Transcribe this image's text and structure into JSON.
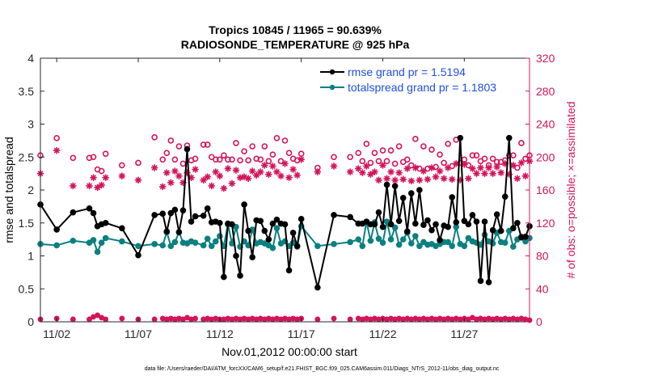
{
  "colors": {
    "rmse": "#000000",
    "spread": "#0b8080",
    "obs": "#d4145a",
    "legend_text": "#1f4fe0",
    "right_axis": "#d4145a",
    "axis": "#262626"
  },
  "chart_data": {
    "type": "line",
    "title": "Tropics 10845 / 11965 = 90.639%",
    "subtitle": "RADIOSONDE_TEMPERATURE @ 925 hPa",
    "xlabel": "Nov.01,2012 00:00:00 start",
    "ylabel": "rmse and totalspread",
    "y2label": "# of obs: o=possible; ×=assimilated",
    "footer": "data file: /Users/raeder/DAI/ATM_forcXX/CAM6_setup/f.e21.FHIST_BGC.f09_025.CAM6assim.011/Diags_NTrS_2012-11/obs_diag_output.nc",
    "xlim": [
      0.5,
      30.5
    ],
    "ylim": [
      0,
      4
    ],
    "y2lim": [
      0,
      320
    ],
    "xticks": [
      1.5,
      6.5,
      11.5,
      16.5,
      21.5,
      26.5
    ],
    "xtick_labels": [
      "11/02",
      "11/07",
      "11/12",
      "11/17",
      "11/22",
      "11/27"
    ],
    "yticks": [
      0,
      0.5,
      1,
      1.5,
      2,
      2.5,
      3,
      3.5,
      4
    ],
    "ytick_labels": [
      "0",
      "0.5",
      "1",
      "1.5",
      "2",
      "2.5",
      "3",
      "3.5",
      "4"
    ],
    "y2ticks": [
      0,
      40,
      80,
      120,
      160,
      200,
      240,
      280,
      320
    ],
    "y2tick_labels": [
      "0",
      "40",
      "80",
      "120",
      "160",
      "200",
      "240",
      "280",
      "320"
    ],
    "legend": {
      "position": "top-right",
      "entries": [
        "rmse grand pr = 1.5194",
        "totalspread grand pr = 1.1803"
      ]
    },
    "series": [
      {
        "name": "rmse grand pr = 1.5194",
        "style": "black-line-dots",
        "x": [
          0.5,
          1.5,
          2.5,
          3.5,
          3.75,
          4.0,
          4.25,
          4.5,
          5.5,
          6.5,
          7.5,
          8.0,
          8.25,
          8.5,
          8.75,
          9.0,
          9.25,
          9.5,
          9.75,
          10.0,
          10.5,
          10.75,
          11.0,
          11.25,
          11.5,
          11.75,
          12.0,
          12.25,
          12.5,
          12.75,
          13.0,
          13.25,
          13.5,
          13.75,
          14.0,
          14.25,
          14.5,
          14.75,
          15.0,
          15.25,
          15.5,
          15.75,
          16.0,
          16.25,
          16.5,
          17.5,
          18.5,
          19.5,
          20.0,
          20.25,
          20.5,
          20.75,
          21.0,
          21.25,
          21.5,
          21.75,
          22.0,
          22.25,
          22.5,
          22.75,
          23.0,
          23.25,
          23.5,
          23.75,
          24.0,
          24.25,
          24.5,
          24.75,
          25.0,
          25.25,
          25.5,
          25.75,
          26.0,
          26.25,
          26.5,
          26.75,
          27.0,
          27.25,
          27.5,
          27.75,
          28.0,
          28.25,
          28.5,
          28.75,
          29.0,
          29.25,
          29.5,
          29.75,
          30.0,
          30.25,
          30.5
        ],
        "y": [
          1.78,
          1.4,
          1.66,
          1.72,
          1.65,
          1.45,
          1.48,
          1.5,
          1.42,
          1.01,
          1.62,
          1.64,
          1.37,
          1.65,
          1.7,
          1.36,
          1.69,
          2.62,
          1.52,
          1.6,
          1.61,
          1.72,
          1.51,
          1.52,
          1.5,
          0.68,
          1.49,
          1.48,
          1.0,
          0.7,
          1.78,
          1.38,
          0.98,
          1.54,
          1.53,
          1.38,
          1.25,
          1.49,
          1.55,
          1.49,
          1.48,
          0.78,
          1.35,
          1.15,
          1.56,
          0.52,
          1.62,
          1.59,
          1.49,
          1.49,
          1.52,
          1.48,
          1.48,
          1.66,
          1.44,
          2.08,
          1.48,
          2.06,
          1.53,
          1.88,
          1.37,
          1.95,
          1.49,
          2.0,
          1.47,
          1.54,
          1.39,
          1.48,
          1.24,
          1.46,
          1.44,
          1.89,
          1.51,
          2.79,
          1.53,
          1.48,
          1.62,
          1.52,
          0.62,
          1.52,
          0.6,
          1.39,
          1.63,
          1.38,
          1.9,
          2.79,
          1.42,
          1.5,
          1.28,
          1.29,
          1.45
        ],
        "yaxis": "left"
      },
      {
        "name": "totalspread grand pr = 1.1803",
        "style": "teal-line-dots",
        "x": [
          0.5,
          1.5,
          2.5,
          3.5,
          3.75,
          4.0,
          4.25,
          4.5,
          5.5,
          6.5,
          7.5,
          8.0,
          8.25,
          8.5,
          8.75,
          9.0,
          9.25,
          9.5,
          9.75,
          10.0,
          10.5,
          10.75,
          11.0,
          11.25,
          11.5,
          11.75,
          12.0,
          12.25,
          12.5,
          12.75,
          13.0,
          13.25,
          13.5,
          13.75,
          14.0,
          14.25,
          14.5,
          14.75,
          15.0,
          15.25,
          15.5,
          15.75,
          16.0,
          16.25,
          16.5,
          17.5,
          18.5,
          19.5,
          20.0,
          20.25,
          20.5,
          20.75,
          21.0,
          21.25,
          21.5,
          21.75,
          22.0,
          22.25,
          22.5,
          22.75,
          23.0,
          23.25,
          23.5,
          23.75,
          24.0,
          24.25,
          24.5,
          24.75,
          25.0,
          25.25,
          25.5,
          25.75,
          26.0,
          26.25,
          26.5,
          26.75,
          27.0,
          27.25,
          27.5,
          27.75,
          28.0,
          28.25,
          28.5,
          28.75,
          29.0,
          29.25,
          29.5,
          29.75,
          30.0,
          30.25,
          30.5
        ],
        "y": [
          1.18,
          1.16,
          1.23,
          1.2,
          1.24,
          1.06,
          1.2,
          1.27,
          1.22,
          1.15,
          1.18,
          1.16,
          1.36,
          1.15,
          1.21,
          1.36,
          1.2,
          1.19,
          1.22,
          1.2,
          1.16,
          1.26,
          1.15,
          1.22,
          1.3,
          1.15,
          1.48,
          1.19,
          1.44,
          1.14,
          1.22,
          1.16,
          1.4,
          1.19,
          1.21,
          1.19,
          1.16,
          1.12,
          1.42,
          1.19,
          1.22,
          1.15,
          1.2,
          1.14,
          1.45,
          1.15,
          1.18,
          1.21,
          1.25,
          1.15,
          1.52,
          1.23,
          1.51,
          1.26,
          1.2,
          1.52,
          1.25,
          1.43,
          1.17,
          1.25,
          1.35,
          1.19,
          1.3,
          1.15,
          1.21,
          1.17,
          1.18,
          1.15,
          1.18,
          1.21,
          1.21,
          1.15,
          1.44,
          1.18,
          1.15,
          1.27,
          1.22,
          1.2,
          1.17,
          1.32,
          1.22,
          1.19,
          1.35,
          1.21,
          1.2,
          1.38,
          1.14,
          1.25,
          1.29,
          1.22,
          1.27
        ],
        "yaxis": "left"
      },
      {
        "name": "obs possible",
        "style": "pink-open-circles",
        "x": [
          0.5,
          1.5,
          2.5,
          3.5,
          3.75,
          4.0,
          4.25,
          4.5,
          5.5,
          6.5,
          7.5,
          8.0,
          8.25,
          8.5,
          8.75,
          9.0,
          9.25,
          9.5,
          9.75,
          10.0,
          10.5,
          10.75,
          11.0,
          11.25,
          11.5,
          11.75,
          12.0,
          12.25,
          12.5,
          12.75,
          13.0,
          13.25,
          13.5,
          13.75,
          14.0,
          14.25,
          14.5,
          14.75,
          15.0,
          15.25,
          15.5,
          15.75,
          16.0,
          16.25,
          16.5,
          17.5,
          18.5,
          19.5,
          20.0,
          20.25,
          20.5,
          20.75,
          21.0,
          21.25,
          21.5,
          21.75,
          22.0,
          22.25,
          22.5,
          22.75,
          23.0,
          23.25,
          23.5,
          23.75,
          24.0,
          24.25,
          24.5,
          24.75,
          25.0,
          25.25,
          25.5,
          25.75,
          26.0,
          26.25,
          26.5,
          26.75,
          27.0,
          27.25,
          27.5,
          27.75,
          28.0,
          28.25,
          28.5,
          28.75,
          29.0,
          29.25,
          29.5,
          29.75,
          30.0,
          30.25,
          30.5
        ],
        "y": [
          202,
          223,
          199,
          199,
          200,
          185,
          183,
          204,
          190,
          193,
          224,
          197,
          205,
          220,
          197,
          213,
          192,
          214,
          196,
          198,
          215,
          215,
          200,
          197,
          197,
          202,
          197,
          197,
          217,
          196,
          207,
          196,
          213,
          198,
          197,
          213,
          195,
          203,
          223,
          195,
          220,
          205,
          198,
          196,
          204,
          187,
          200,
          200,
          205,
          195,
          216,
          193,
          205,
          195,
          208,
          195,
          208,
          192,
          213,
          194,
          197,
          190,
          222,
          186,
          213,
          186,
          209,
          188,
          203,
          193,
          216,
          189,
          221,
          193,
          197,
          190,
          202,
          202,
          195,
          198,
          190,
          198,
          194,
          194,
          196,
          202,
          202,
          187,
          217,
          198,
          202
        ],
        "yaxis": "right"
      },
      {
        "name": "obs assimilated",
        "style": "pink-asterisks",
        "x": [
          0.5,
          1.5,
          2.5,
          3.5,
          3.75,
          4.0,
          4.25,
          4.5,
          5.5,
          6.5,
          7.5,
          8.0,
          8.25,
          8.5,
          8.75,
          9.0,
          9.25,
          9.5,
          9.75,
          10.0,
          10.5,
          10.75,
          11.0,
          11.25,
          11.5,
          11.75,
          12.0,
          12.25,
          12.5,
          12.75,
          13.0,
          13.25,
          13.5,
          13.75,
          14.0,
          14.25,
          14.5,
          14.75,
          15.0,
          15.25,
          15.5,
          15.75,
          16.0,
          16.25,
          16.5,
          17.5,
          18.5,
          19.5,
          20.0,
          20.25,
          20.5,
          20.75,
          21.0,
          21.25,
          21.5,
          21.75,
          22.0,
          22.25,
          22.5,
          22.75,
          23.0,
          23.25,
          23.5,
          23.75,
          24.0,
          24.25,
          24.5,
          24.75,
          25.0,
          25.25,
          25.5,
          25.75,
          26.0,
          26.25,
          26.5,
          26.75,
          27.0,
          27.25,
          27.5,
          27.75,
          28.0,
          28.25,
          28.5,
          28.75,
          29.0,
          29.25,
          29.5,
          29.75,
          30.0,
          30.25,
          30.5
        ],
        "y": [
          180,
          208,
          165,
          165,
          175,
          163,
          166,
          175,
          177,
          172,
          187,
          164,
          181,
          169,
          183,
          177,
          169,
          181,
          175,
          185,
          172,
          176,
          165,
          182,
          177,
          162,
          186,
          168,
          184,
          175,
          176,
          174,
          183,
          178,
          182,
          190,
          179,
          189,
          182,
          177,
          192,
          175,
          185,
          178,
          197,
          182,
          189,
          182,
          186,
          181,
          189,
          179,
          182,
          172,
          190,
          174,
          182,
          172,
          181,
          173,
          186,
          171,
          187,
          172,
          183,
          173,
          187,
          176,
          183,
          174,
          187,
          173,
          192,
          172,
          191,
          174,
          186,
          180,
          187,
          180,
          187,
          180,
          188,
          181,
          192,
          179,
          190,
          174,
          193,
          177,
          195
        ],
        "yaxis": "right"
      },
      {
        "name": "obs near zero",
        "style": "pink-open-circles-and-asterisks",
        "x": [
          0.5,
          1.5,
          2.5,
          3.5,
          3.75,
          4.0,
          4.25,
          4.5,
          5.5,
          6.5,
          7.5,
          8.0,
          8.25,
          8.5,
          8.75,
          9.0,
          9.25,
          9.5,
          9.75,
          10.0,
          10.5,
          10.75,
          11.0,
          11.25,
          11.5,
          11.75,
          12.0,
          12.25,
          12.5,
          12.75,
          13.0,
          13.25,
          13.5,
          13.75,
          14.0,
          14.25,
          14.5,
          14.75,
          15.0,
          15.25,
          15.5,
          15.75,
          16.0,
          16.25,
          16.5,
          17.5,
          18.5,
          19.5,
          20.0,
          20.25,
          20.5,
          20.75,
          21.0,
          21.25,
          21.5,
          21.75,
          22.0,
          22.25,
          22.5,
          22.75,
          23.0,
          23.25,
          23.5,
          23.75,
          24.0,
          24.25,
          24.5,
          24.75,
          25.0,
          25.25,
          25.5,
          25.75,
          26.0,
          26.25,
          26.5,
          26.75,
          27.0,
          27.25,
          27.5,
          27.75,
          28.0,
          28.25,
          28.5,
          28.75,
          29.0,
          29.25,
          29.5,
          29.75,
          30.0,
          30.25,
          30.5
        ],
        "y": [
          3,
          4,
          3,
          3,
          6,
          8,
          5,
          3,
          4,
          3,
          3,
          4,
          3,
          4,
          3,
          4,
          3,
          5,
          3,
          4,
          3,
          4,
          3,
          4,
          3,
          3,
          4,
          3,
          4,
          3,
          4,
          3,
          4,
          3,
          4,
          3,
          4,
          3,
          4,
          3,
          4,
          3,
          4,
          3,
          4,
          3,
          4,
          3,
          4,
          3,
          4,
          3,
          4,
          3,
          4,
          3,
          4,
          3,
          4,
          3,
          4,
          3,
          4,
          3,
          4,
          3,
          4,
          3,
          4,
          3,
          4,
          3,
          4,
          3,
          4,
          3,
          5,
          3,
          4,
          3,
          4,
          3,
          4,
          3,
          4,
          3,
          4,
          3,
          4,
          3,
          2
        ],
        "yaxis": "right"
      }
    ]
  }
}
